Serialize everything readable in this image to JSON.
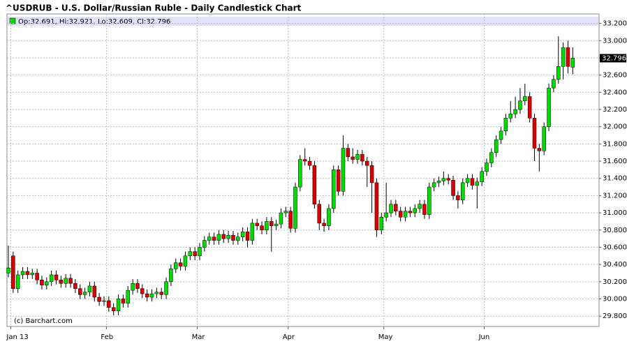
{
  "chart_data": {
    "type": "candlestick",
    "title": "^USDRUB - U.S. Dollar/Russian Ruble - Daily Candlestick Chart",
    "info": "Op:32.691, Hi:32.921, Lo:32.609, Cl:32.796",
    "credit": "(c) Barchart.com",
    "up_color": "#00dd00",
    "down_color": "#dd0000",
    "grid": true,
    "categories": [
      null,
      "Jan 13",
      null,
      null,
      null,
      null,
      null,
      null,
      null,
      null,
      null,
      null,
      null,
      null,
      null,
      null,
      null,
      null,
      null,
      null,
      null,
      "Feb",
      null,
      null,
      null,
      null,
      null,
      null,
      null,
      null,
      null,
      null,
      null,
      null,
      null,
      null,
      null,
      null,
      null,
      null,
      "Mar",
      null,
      null,
      null,
      null,
      null,
      null,
      null,
      null,
      null,
      null,
      null,
      null,
      null,
      null,
      null,
      null,
      null,
      null,
      "Apr",
      null,
      null,
      null,
      null,
      null,
      null,
      null,
      null,
      null,
      null,
      null,
      null,
      null,
      null,
      null,
      null,
      null,
      null,
      null,
      "May",
      null,
      null,
      null,
      null,
      null,
      null,
      null,
      null,
      null,
      null,
      null,
      null,
      null,
      null,
      null,
      null,
      null,
      null,
      null,
      null,
      "Jun",
      null,
      null,
      null,
      null,
      null,
      null,
      null,
      null,
      null,
      null,
      null,
      null,
      null,
      null,
      null,
      null,
      null,
      null
    ],
    "open": [
      30.3,
      30.5,
      30.12,
      30.28,
      30.32,
      30.28,
      30.3,
      30.22,
      30.16,
      30.2,
      30.28,
      30.22,
      30.18,
      30.24,
      30.18,
      30.12,
      30.05,
      30.08,
      30.15,
      30.02,
      29.97,
      29.98,
      29.9,
      29.86,
      30.0,
      29.95,
      30.1,
      30.18,
      30.12,
      30.06,
      30.02,
      30.06,
      30.08,
      30.05,
      30.2,
      30.35,
      30.42,
      30.38,
      30.5,
      30.55,
      30.5,
      30.6,
      30.68,
      30.72,
      30.68,
      30.75,
      30.7,
      30.74,
      30.68,
      30.72,
      30.78,
      30.68,
      30.88,
      30.85,
      30.8,
      30.9,
      30.85,
      30.87,
      31.0,
      31.02,
      30.82,
      31.3,
      31.62,
      31.6,
      31.55,
      31.1,
      30.88,
      30.85,
      31.05,
      31.5,
      31.25,
      31.75,
      31.65,
      31.62,
      31.68,
      31.6,
      31.55,
      31.35,
      30.8,
      30.95,
      31.0,
      31.1,
      31.02,
      30.95,
      31.02,
      31.0,
      31.05,
      31.1,
      30.98,
      31.3,
      31.35,
      31.37,
      31.4,
      31.38,
      31.2,
      31.15,
      31.35,
      31.4,
      31.32,
      31.36,
      31.48,
      31.58,
      31.7,
      31.85,
      31.95,
      32.1,
      32.15,
      32.2,
      32.3,
      32.35,
      32.1,
      31.75,
      31.72,
      32.0,
      32.45,
      32.55,
      32.7,
      32.92,
      32.691
    ],
    "high": [
      30.62,
      30.55,
      30.33,
      30.37,
      30.37,
      30.35,
      30.35,
      30.27,
      30.25,
      30.33,
      30.33,
      30.27,
      30.29,
      30.29,
      30.23,
      30.17,
      30.13,
      30.2,
      30.2,
      30.07,
      30.03,
      30.03,
      29.95,
      30.05,
      30.05,
      30.15,
      30.23,
      30.23,
      30.17,
      30.11,
      30.11,
      30.13,
      30.13,
      30.25,
      30.4,
      30.47,
      30.47,
      30.55,
      30.6,
      30.6,
      30.65,
      30.73,
      30.77,
      30.77,
      30.8,
      30.8,
      30.79,
      30.79,
      30.77,
      30.83,
      30.83,
      30.93,
      30.93,
      30.9,
      30.95,
      30.95,
      30.92,
      31.05,
      31.07,
      31.07,
      31.35,
      31.67,
      31.75,
      31.65,
      31.6,
      31.15,
      30.93,
      31.1,
      31.55,
      31.55,
      31.9,
      31.8,
      31.75,
      31.73,
      31.73,
      31.65,
      31.6,
      31.4,
      31.0,
      31.35,
      31.15,
      31.15,
      31.07,
      31.07,
      31.07,
      31.1,
      31.15,
      31.15,
      31.35,
      31.4,
      31.42,
      31.48,
      31.45,
      31.43,
      31.25,
      31.4,
      31.45,
      31.45,
      31.41,
      31.53,
      31.63,
      31.75,
      31.9,
      32.0,
      32.15,
      32.3,
      32.35,
      32.45,
      32.5,
      32.4,
      32.15,
      31.8,
      32.05,
      32.5,
      32.6,
      33.05,
      32.98,
      33.0,
      32.921
    ],
    "low": [
      30.25,
      30.07,
      30.07,
      30.23,
      30.23,
      30.23,
      30.17,
      30.11,
      30.11,
      30.15,
      30.17,
      30.13,
      30.13,
      30.13,
      30.07,
      30.0,
      30.0,
      30.03,
      29.97,
      29.92,
      29.92,
      29.85,
      29.81,
      29.81,
      29.9,
      29.9,
      30.05,
      30.07,
      30.01,
      29.97,
      29.97,
      30.01,
      30.0,
      30.0,
      30.15,
      30.3,
      30.33,
      30.33,
      30.45,
      30.45,
      30.45,
      30.55,
      30.63,
      30.63,
      30.63,
      30.65,
      30.65,
      30.63,
      30.63,
      30.67,
      30.6,
      30.63,
      30.8,
      30.75,
      30.75,
      30.55,
      30.8,
      30.82,
      30.95,
      30.77,
      30.77,
      31.25,
      31.55,
      31.5,
      31.05,
      30.8,
      30.78,
      30.8,
      31.0,
      31.2,
      31.2,
      31.6,
      31.57,
      31.57,
      31.55,
      31.3,
      31.0,
      30.72,
      30.75,
      30.9,
      30.95,
      30.97,
      30.9,
      30.9,
      30.95,
      30.95,
      31.0,
      30.93,
      30.93,
      31.25,
      31.3,
      31.32,
      31.33,
      31.15,
      31.05,
      31.1,
      31.3,
      31.27,
      31.05,
      31.31,
      31.43,
      31.53,
      31.65,
      31.8,
      31.9,
      32.05,
      32.1,
      32.15,
      32.25,
      32.05,
      31.6,
      31.48,
      31.67,
      31.95,
      32.4,
      32.5,
      32.55,
      32.62,
      32.609
    ],
    "close": [
      30.36,
      30.12,
      30.28,
      30.32,
      30.28,
      30.3,
      30.22,
      30.16,
      30.2,
      30.28,
      30.22,
      30.18,
      30.24,
      30.18,
      30.12,
      30.05,
      30.08,
      30.15,
      30.02,
      29.97,
      29.98,
      29.9,
      29.86,
      30.0,
      29.95,
      30.1,
      30.18,
      30.12,
      30.06,
      30.02,
      30.06,
      30.08,
      30.05,
      30.2,
      30.35,
      30.42,
      30.38,
      30.5,
      30.55,
      30.5,
      30.6,
      30.68,
      30.72,
      30.68,
      30.75,
      30.7,
      30.74,
      30.68,
      30.72,
      30.78,
      30.68,
      30.88,
      30.85,
      30.8,
      30.9,
      30.85,
      30.87,
      31.0,
      31.02,
      30.82,
      31.3,
      31.62,
      31.6,
      31.55,
      31.1,
      30.88,
      30.85,
      31.05,
      31.5,
      31.25,
      31.75,
      31.65,
      31.62,
      31.68,
      31.6,
      31.55,
      31.35,
      30.8,
      30.95,
      31.0,
      31.1,
      31.02,
      30.95,
      31.02,
      31.0,
      31.05,
      31.1,
      30.98,
      31.3,
      31.35,
      31.37,
      31.4,
      31.38,
      31.2,
      31.15,
      31.35,
      31.4,
      31.32,
      31.36,
      31.48,
      31.58,
      31.7,
      31.85,
      31.95,
      32.1,
      32.15,
      32.2,
      32.3,
      32.35,
      32.1,
      31.75,
      31.72,
      32.0,
      32.45,
      32.55,
      32.7,
      32.92,
      32.7,
      32.796
    ],
    "ylim": [
      29.68,
      33.31
    ],
    "yticks": [
      {
        "value": 29.8,
        "label": "29.800"
      },
      {
        "value": 30.0,
        "label": "30.000"
      },
      {
        "value": 30.2,
        "label": "30.200"
      },
      {
        "value": 30.4,
        "label": "30.400"
      },
      {
        "value": 30.6,
        "label": "30.600"
      },
      {
        "value": 30.8,
        "label": "30.800"
      },
      {
        "value": 31.0,
        "label": "31.000"
      },
      {
        "value": 31.2,
        "label": "31.200"
      },
      {
        "value": 31.4,
        "label": "31.400"
      },
      {
        "value": 31.6,
        "label": "31.600"
      },
      {
        "value": 31.8,
        "label": "31.800"
      },
      {
        "value": 32.0,
        "label": "32.000"
      },
      {
        "value": 32.2,
        "label": "32.200"
      },
      {
        "value": 32.4,
        "label": "32.400"
      },
      {
        "value": 32.6,
        "label": "32.600"
      },
      {
        "value": 32.8,
        "label": "32.800"
      },
      {
        "value": 33.0,
        "label": "33.000"
      },
      {
        "value": 33.2,
        "label": "33.200"
      }
    ]
  }
}
